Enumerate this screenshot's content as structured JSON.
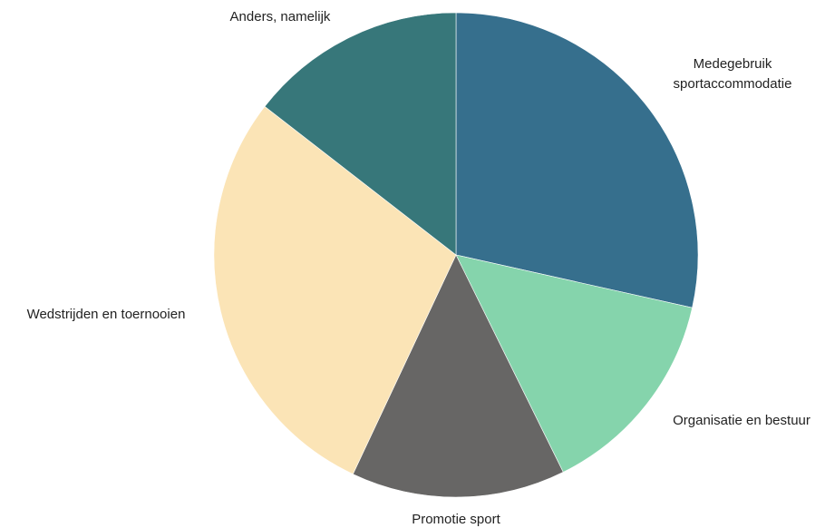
{
  "chart_data": {
    "type": "pie",
    "title": "",
    "legend": "none",
    "start_angle_deg": 0,
    "direction": "clockwise",
    "slices": [
      {
        "label": [
          "Medegebruik",
          "sportaccommodatie"
        ],
        "value": 28.5,
        "color": "#366F8D"
      },
      {
        "label": [
          "Organisatie en bestuur"
        ],
        "value": 14.2,
        "color": "#85D4AC"
      },
      {
        "label": [
          "Promotie sport"
        ],
        "value": 14.3,
        "color": "#676665"
      },
      {
        "label": [
          "Wedstrijden en toernooien"
        ],
        "value": 28.5,
        "color": "#FBE4B6"
      },
      {
        "label": [
          "Anders, namelijk"
        ],
        "value": 14.5,
        "color": "#37777A"
      }
    ]
  }
}
